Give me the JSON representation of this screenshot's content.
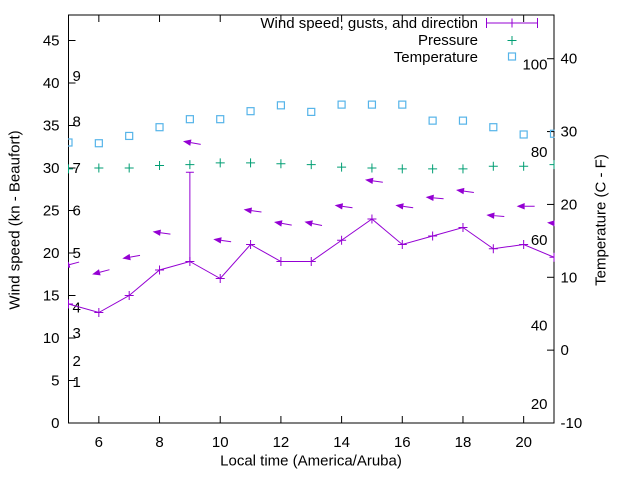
{
  "chart_data": {
    "type": "line",
    "xlabel": "Local time (America/Aruba)",
    "ylabel_left": "Wind speed (kn - Beaufort)",
    "ylabel_right": "Temperature (C - F)",
    "x": [
      5,
      6,
      7,
      8,
      9,
      10,
      11,
      12,
      13,
      14,
      15,
      16,
      17,
      18,
      19,
      20,
      21
    ],
    "x_range": [
      5,
      21
    ],
    "x_ticks": [
      6,
      8,
      10,
      12,
      14,
      16,
      18,
      20
    ],
    "y_left_range": [
      0,
      48
    ],
    "y_left_ticks": [
      0,
      5,
      10,
      15,
      20,
      25,
      30,
      35,
      40,
      45
    ],
    "y_right_range": [
      -10,
      46
    ],
    "y_right_ticks": [
      -10,
      0,
      10,
      20,
      30,
      40
    ],
    "grid": false,
    "legend_position": "top-right-inside",
    "beaufort_scale_labels": [
      {
        "text": "1",
        "kn": 4.8
      },
      {
        "text": "2",
        "kn": 7.3
      },
      {
        "text": "3",
        "kn": 10.6
      },
      {
        "text": "4",
        "kn": 13.6
      },
      {
        "text": "5",
        "kn": 20
      },
      {
        "text": "6",
        "kn": 25
      },
      {
        "text": "7",
        "kn": 30
      },
      {
        "text": "8",
        "kn": 35.5
      },
      {
        "text": "9",
        "kn": 40.8
      }
    ],
    "fahrenheit_scale_labels": [
      {
        "text": "20",
        "c": -7.4
      },
      {
        "text": "40",
        "c": 3.4
      },
      {
        "text": "60",
        "c": 15.1
      },
      {
        "text": "80",
        "c": 27.2
      },
      {
        "text": "100",
        "c": 39.2
      }
    ],
    "series": [
      {
        "name": "Wind speed, gusts, and direction",
        "color": "#9400d3",
        "style": "linespoints+errorbars+direction-arrows",
        "wind_kn": [
          14,
          13,
          15,
          18,
          19,
          17,
          21,
          19,
          19,
          21.5,
          24,
          21,
          22,
          23,
          20.5,
          21,
          19.5
        ],
        "gust_kn": [
          null,
          null,
          null,
          null,
          29.5,
          null,
          null,
          null,
          null,
          null,
          null,
          null,
          null,
          null,
          null,
          null,
          null
        ],
        "arrow_kn": [
          18.6,
          17.7,
          19.5,
          22.4,
          33,
          21.5,
          25,
          23.5,
          23.5,
          25.5,
          28.5,
          25.5,
          26.5,
          27.3,
          24.4,
          25.5,
          23.5
        ],
        "arrow_tilt_deg": [
          15,
          15,
          10,
          -8,
          -10,
          -8,
          -8,
          -10,
          -12,
          -8,
          -8,
          -8,
          -5,
          -8,
          -5,
          0,
          -5
        ]
      },
      {
        "name": "Pressure",
        "color": "#009e73",
        "style": "points-plus",
        "y_kn": [
          29.9,
          30,
          30,
          30.3,
          30.4,
          30.6,
          30.6,
          30.5,
          30.4,
          30.1,
          30,
          29.9,
          29.9,
          29.9,
          30.2,
          30.2,
          30.4
        ]
      },
      {
        "name": "Temperature",
        "color": "#56b4e9",
        "style": "points-open-square",
        "temp_c": [
          28.5,
          28.4,
          29.4,
          30.6,
          31.7,
          31.7,
          32.8,
          33.6,
          32.7,
          33.7,
          33.7,
          33.7,
          31.5,
          31.5,
          30.6,
          29.6,
          29.7
        ]
      }
    ]
  }
}
